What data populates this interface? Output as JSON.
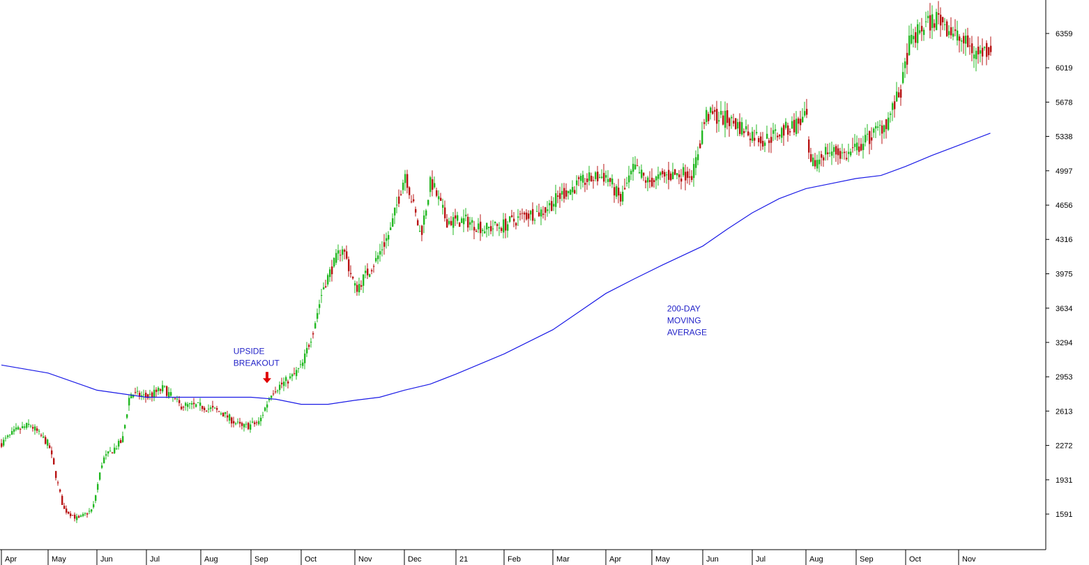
{
  "chart_data": {
    "type": "candlestick",
    "title": "",
    "xlabel": "",
    "ylabel": "",
    "y_axis_position": "right",
    "grid": false,
    "ylim": [
      1350,
      6700
    ],
    "y_ticks": [
      6359,
      6019,
      5678,
      5338,
      4997,
      4656,
      4316,
      3975,
      3634,
      3294,
      2953,
      2613,
      2272,
      1931,
      1591
    ],
    "x_labels": [
      "Apr",
      "May",
      "Jun",
      "Jul",
      "Aug",
      "Sep",
      "Oct",
      "Nov",
      "Dec",
      "21",
      "Feb",
      "Mar",
      "Apr",
      "May",
      "Jun",
      "Jul",
      "Aug",
      "Sep",
      "Oct",
      "Nov"
    ],
    "colors": {
      "up": "#22b822",
      "down": "#b81414",
      "moving_average": "#1a1ae6",
      "annotation": "#2323c8",
      "arrow": "#e00000"
    },
    "price_path": [
      {
        "m": 0.0,
        "v": 2300
      },
      {
        "m": 0.3,
        "v": 2420
      },
      {
        "m": 0.6,
        "v": 2480
      },
      {
        "m": 1.0,
        "v": 2280
      },
      {
        "m": 1.3,
        "v": 1640
      },
      {
        "m": 1.6,
        "v": 1540
      },
      {
        "m": 1.9,
        "v": 1640
      },
      {
        "m": 2.1,
        "v": 2130
      },
      {
        "m": 2.5,
        "v": 2320
      },
      {
        "m": 2.65,
        "v": 2790
      },
      {
        "m": 3.0,
        "v": 2750
      },
      {
        "m": 3.3,
        "v": 2840
      },
      {
        "m": 3.6,
        "v": 2670
      },
      {
        "m": 4.0,
        "v": 2660
      },
      {
        "m": 4.4,
        "v": 2600
      },
      {
        "m": 4.8,
        "v": 2450
      },
      {
        "m": 5.15,
        "v": 2500
      },
      {
        "m": 5.4,
        "v": 2810
      },
      {
        "m": 5.8,
        "v": 2950
      },
      {
        "m": 6.0,
        "v": 3060
      },
      {
        "m": 6.2,
        "v": 3400
      },
      {
        "m": 6.4,
        "v": 3850
      },
      {
        "m": 6.75,
        "v": 4250
      },
      {
        "m": 7.0,
        "v": 3820
      },
      {
        "m": 7.4,
        "v": 4100
      },
      {
        "m": 7.7,
        "v": 4400
      },
      {
        "m": 8.0,
        "v": 4980
      },
      {
        "m": 8.3,
        "v": 4350
      },
      {
        "m": 8.5,
        "v": 4900
      },
      {
        "m": 8.8,
        "v": 4500
      },
      {
        "m": 9.2,
        "v": 4500
      },
      {
        "m": 9.6,
        "v": 4420
      },
      {
        "m": 10.0,
        "v": 4460
      },
      {
        "m": 10.4,
        "v": 4550
      },
      {
        "m": 10.8,
        "v": 4600
      },
      {
        "m": 11.2,
        "v": 4780
      },
      {
        "m": 11.6,
        "v": 4900
      },
      {
        "m": 12.0,
        "v": 4950
      },
      {
        "m": 12.3,
        "v": 4700
      },
      {
        "m": 12.6,
        "v": 5030
      },
      {
        "m": 12.9,
        "v": 4880
      },
      {
        "m": 13.3,
        "v": 4950
      },
      {
        "m": 13.8,
        "v": 4980
      },
      {
        "m": 14.05,
        "v": 5550
      },
      {
        "m": 14.4,
        "v": 5520
      },
      {
        "m": 14.8,
        "v": 5420
      },
      {
        "m": 15.2,
        "v": 5300
      },
      {
        "m": 15.6,
        "v": 5400
      },
      {
        "m": 16.0,
        "v": 5520
      },
      {
        "m": 16.05,
        "v": 5020
      },
      {
        "m": 16.4,
        "v": 5200
      },
      {
        "m": 16.8,
        "v": 5150
      },
      {
        "m": 17.2,
        "v": 5300
      },
      {
        "m": 17.6,
        "v": 5480
      },
      {
        "m": 17.9,
        "v": 5800
      },
      {
        "m": 18.05,
        "v": 6250
      },
      {
        "m": 18.3,
        "v": 6420
      },
      {
        "m": 18.6,
        "v": 6520
      },
      {
        "m": 19.0,
        "v": 6300
      },
      {
        "m": 19.4,
        "v": 6150
      },
      {
        "m": 19.65,
        "v": 6220
      }
    ],
    "moving_average_path": [
      {
        "m": 0.0,
        "v": 3070
      },
      {
        "m": 1.0,
        "v": 2990
      },
      {
        "m": 2.0,
        "v": 2820
      },
      {
        "m": 3.0,
        "v": 2750
      },
      {
        "m": 4.0,
        "v": 2750
      },
      {
        "m": 5.0,
        "v": 2750
      },
      {
        "m": 5.5,
        "v": 2730
      },
      {
        "m": 6.0,
        "v": 2680
      },
      {
        "m": 6.5,
        "v": 2680
      },
      {
        "m": 7.0,
        "v": 2720
      },
      {
        "m": 7.5,
        "v": 2750
      },
      {
        "m": 8.0,
        "v": 2820
      },
      {
        "m": 8.5,
        "v": 2880
      },
      {
        "m": 9.0,
        "v": 2980
      },
      {
        "m": 10.0,
        "v": 3180
      },
      {
        "m": 11.0,
        "v": 3420
      },
      {
        "m": 11.5,
        "v": 3600
      },
      {
        "m": 12.0,
        "v": 3780
      },
      {
        "m": 12.6,
        "v": 3920
      },
      {
        "m": 13.2,
        "v": 4060
      },
      {
        "m": 14.0,
        "v": 4250
      },
      {
        "m": 14.5,
        "v": 4420
      },
      {
        "m": 15.0,
        "v": 4580
      },
      {
        "m": 15.5,
        "v": 4720
      },
      {
        "m": 16.0,
        "v": 4820
      },
      {
        "m": 16.5,
        "v": 4870
      },
      {
        "m": 17.0,
        "v": 4920
      },
      {
        "m": 17.5,
        "v": 4950
      },
      {
        "m": 18.0,
        "v": 5040
      },
      {
        "m": 18.5,
        "v": 5150
      },
      {
        "m": 19.0,
        "v": 5250
      },
      {
        "m": 19.65,
        "v": 5370
      }
    ],
    "annotations": [
      {
        "lines": [
          "UPSIDE",
          "BREAKOUT"
        ],
        "m": 4.65,
        "v": 3180
      },
      {
        "lines": [
          "200-DAY",
          "MOVING",
          "AVERAGE"
        ],
        "m": 13.3,
        "v": 3600
      }
    ],
    "breakout_arrow": {
      "m": 5.32,
      "v": 2890
    }
  }
}
